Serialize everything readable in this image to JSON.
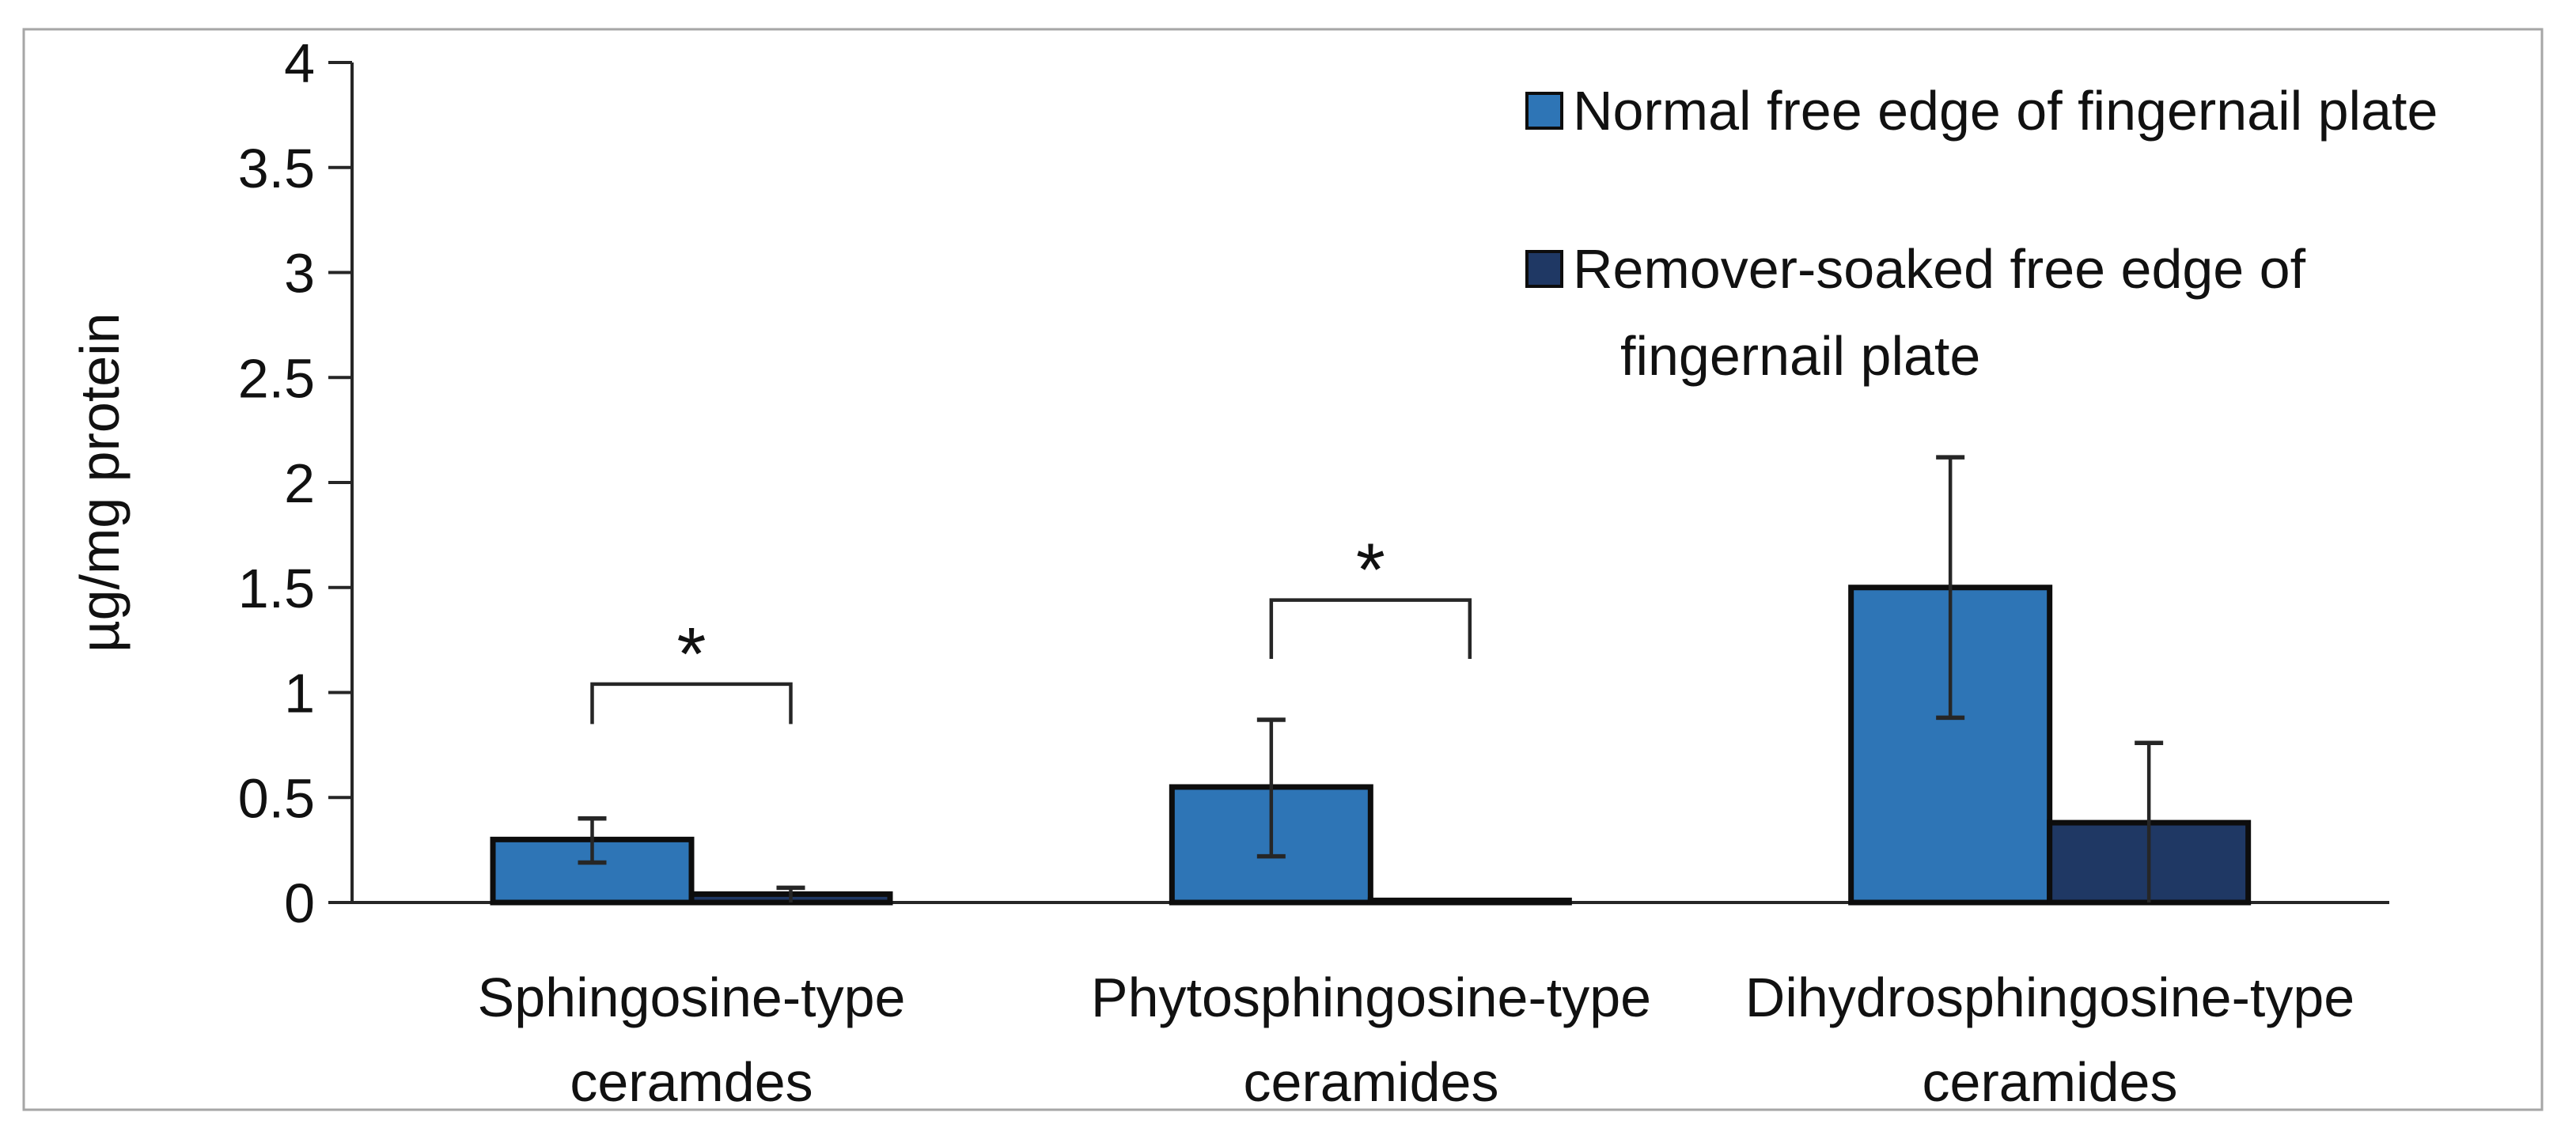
{
  "chart_data": {
    "type": "bar",
    "title": "",
    "ylabel": "µg/mg protein",
    "xlabel": "",
    "ylim": [
      0,
      4
    ],
    "grid": false,
    "legend_position": "top-right",
    "yticks": [
      {
        "v": 0,
        "label": "0"
      },
      {
        "v": 0.5,
        "label": "0.5"
      },
      {
        "v": 1,
        "label": "1"
      },
      {
        "v": 1.5,
        "label": "1.5"
      },
      {
        "v": 2,
        "label": "2"
      },
      {
        "v": 2.5,
        "label": "2.5"
      },
      {
        "v": 3,
        "label": "3"
      },
      {
        "v": 3.5,
        "label": "3.5"
      },
      {
        "v": 4,
        "label": "4"
      }
    ],
    "categories": [
      "Sphingosine-type ceramdes",
      "Phytosphingosine-type ceramides",
      "Dihydrosphingosine-type ceramides"
    ],
    "categories_lines": [
      [
        "Sphingosine-type",
        "ceramdes"
      ],
      [
        "Phytosphingosine-type",
        "ceramides"
      ],
      [
        "Dihydrosphingosine-type",
        "ceramides"
      ]
    ],
    "series": [
      {
        "name": "Normal free edge of fingernail plate",
        "color": "#2E75B6",
        "values": [
          0.3,
          0.55,
          1.5
        ],
        "whisker_high": [
          0.4,
          0.87,
          2.12
        ],
        "whisker_low": [
          0.19,
          0.22,
          0.88
        ],
        "low_cap": true
      },
      {
        "name": "Remover-soaked free edge of fingernail plate",
        "color": "#1F3864",
        "values": [
          0.04,
          0.01,
          0.38
        ],
        "whisker_high": [
          0.07,
          null,
          0.76
        ],
        "whisker_low": [
          0.0,
          null,
          0.0
        ],
        "low_cap": false
      }
    ],
    "legend": [
      {
        "color": "#2E75B6",
        "lines": [
          "Normal free edge of fingernail plate"
        ]
      },
      {
        "color": "#1F3864",
        "lines": [
          "Remover-soaked free edge of",
          "fingernail plate"
        ]
      }
    ],
    "significance": [
      {
        "group": 0,
        "label": "*",
        "bracket_top": 1.04,
        "leg_bottom": 0.85
      },
      {
        "group": 1,
        "label": "*",
        "bracket_top": 1.44,
        "leg_bottom": 1.16
      }
    ]
  },
  "style": {
    "axis_color": "#262626",
    "text_color": "#111111",
    "border_color": "#A6A6A6",
    "bar_stroke": "#0D0D0D",
    "background": "#FFFFFF"
  }
}
